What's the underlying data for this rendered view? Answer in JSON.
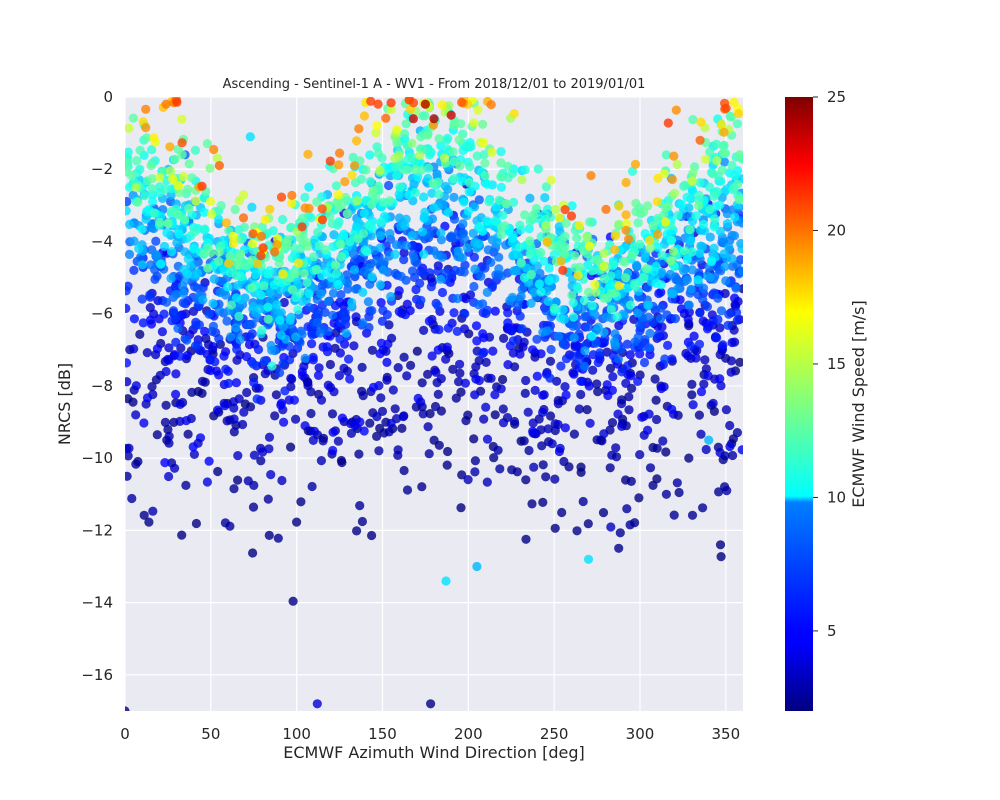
{
  "chart_data": {
    "type": "scatter",
    "title": "Ascending - Sentinel-1 A - WV1 - From 2018/12/01 to 2019/01/01",
    "xlabel": "ECMWF Azimuth Wind Direction [deg]",
    "ylabel": "NRCS [dB]",
    "xlim": [
      0,
      360
    ],
    "ylim": [
      -17,
      0
    ],
    "xticks": [
      0,
      50,
      100,
      150,
      200,
      250,
      300,
      350
    ],
    "yticks": [
      0,
      -2,
      -4,
      -6,
      -8,
      -10,
      -12,
      -14,
      -16
    ],
    "grid": true,
    "background": "#eaeaf2",
    "colorbar": {
      "label": "ECMWF Wind Speed [m/s]",
      "colormap": "jet",
      "range": [
        2,
        25
      ],
      "ticks": [
        5,
        10,
        15,
        20,
        25
      ]
    },
    "model": {
      "description": "NRCS rises with wind speed and peaks near 0/360 and 180 deg (upwind/downwind), lowest near 90/270 deg (crosswind)",
      "point_count": 3000
    },
    "series": [
      {
        "points": [
          {
            "x": 175,
            "y": -0.2,
            "speed": 24
          },
          {
            "x": 180,
            "y": -0.6,
            "speed": 24
          },
          {
            "x": 190,
            "y": -0.5,
            "speed": 23
          },
          {
            "x": 168,
            "y": -0.6,
            "speed": 23
          },
          {
            "x": 55,
            "y": -1.9,
            "speed": 20
          },
          {
            "x": 335,
            "y": -1.2,
            "speed": 20
          },
          {
            "x": 255,
            "y": -4.8,
            "speed": 21
          },
          {
            "x": 115,
            "y": -3.4,
            "speed": 21
          },
          {
            "x": 73,
            "y": -1.1,
            "speed": 10
          },
          {
            "x": 35,
            "y": -1.6,
            "speed": 7
          },
          {
            "x": 340,
            "y": -9.5,
            "speed": 9
          },
          {
            "x": 270,
            "y": -12.8,
            "speed": 10
          },
          {
            "x": 187,
            "y": -13.4,
            "speed": 10
          },
          {
            "x": 205,
            "y": -13.0,
            "speed": 9
          },
          {
            "x": 0,
            "y": -17.0,
            "speed": 2
          },
          {
            "x": 178,
            "y": -16.8,
            "speed": 2
          },
          {
            "x": 112,
            "y": -16.8,
            "speed": 4
          }
        ]
      }
    ]
  }
}
